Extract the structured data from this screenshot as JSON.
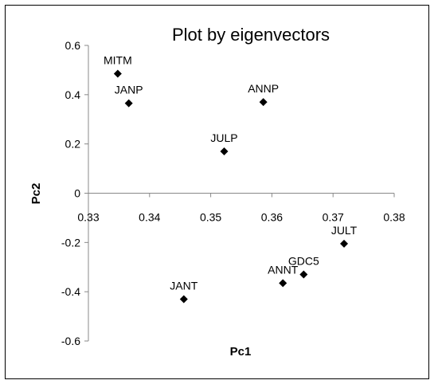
{
  "chart_data": {
    "type": "scatter",
    "title": "Plot by eigenvectors",
    "xlabel": "Pc1",
    "ylabel": "Pc2",
    "xlim": [
      0.33,
      0.38
    ],
    "ylim": [
      -0.6,
      0.6
    ],
    "x_ticks": [
      "0.33",
      "0.34",
      "0.35",
      "0.36",
      "0.37",
      "0.38"
    ],
    "y_ticks": [
      "0.6",
      "0.4",
      "0.2",
      "0",
      "-0.2",
      "-0.4",
      "-0.6"
    ],
    "grid": false,
    "legend": "none",
    "marker": "diamond",
    "marker_color": "#000000",
    "points": [
      {
        "label": "MITM",
        "x": 0.3348,
        "y": 0.485
      },
      {
        "label": "JANP",
        "x": 0.3366,
        "y": 0.365
      },
      {
        "label": "ANNP",
        "x": 0.3586,
        "y": 0.37
      },
      {
        "label": "JULP",
        "x": 0.3522,
        "y": 0.17
      },
      {
        "label": "JULT",
        "x": 0.3718,
        "y": -0.205
      },
      {
        "label": "GDC5",
        "x": 0.3652,
        "y": -0.33
      },
      {
        "label": "ANNT",
        "x": 0.3618,
        "y": -0.365
      },
      {
        "label": "JANT",
        "x": 0.3456,
        "y": -0.43
      }
    ]
  }
}
